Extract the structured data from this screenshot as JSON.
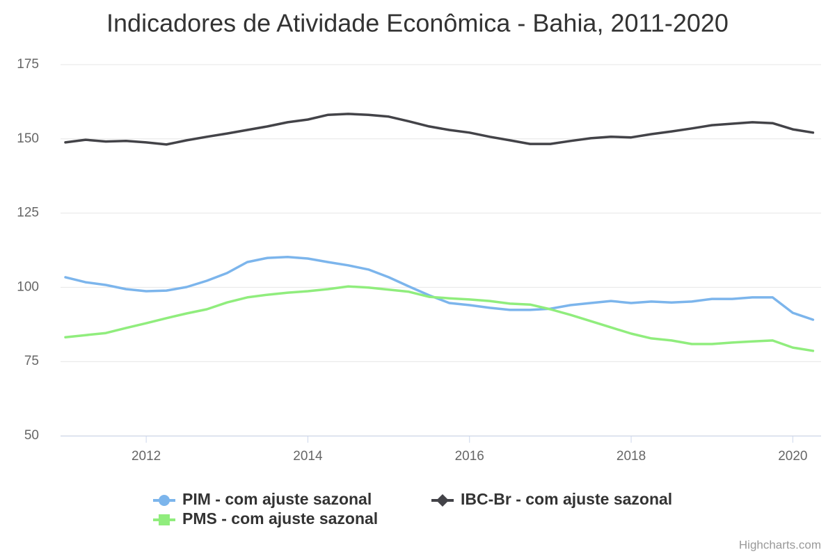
{
  "chart_data": {
    "type": "line",
    "title": "Indicadores de Atividade Econômica - Bahia, 2011-2020",
    "credits": "Highcharts.com",
    "x": [
      2011.0,
      2011.25,
      2011.5,
      2011.75,
      2012.0,
      2012.25,
      2012.5,
      2012.75,
      2013.0,
      2013.25,
      2013.5,
      2013.75,
      2014.0,
      2014.25,
      2014.5,
      2014.75,
      2015.0,
      2015.25,
      2015.5,
      2015.75,
      2016.0,
      2016.25,
      2016.5,
      2016.75,
      2017.0,
      2017.25,
      2017.5,
      2017.75,
      2018.0,
      2018.25,
      2018.5,
      2018.75,
      2019.0,
      2019.25,
      2019.5,
      2019.75,
      2020.0,
      2020.25
    ],
    "series": [
      {
        "name": "PIM - com ajuste sazonal",
        "color": "#7cb5ec",
        "marker": "circle",
        "values": [
          103.4,
          101.7,
          100.8,
          99.4,
          98.7,
          98.9,
          100.1,
          102.2,
          104.8,
          108.5,
          109.9,
          110.2,
          109.7,
          108.5,
          107.4,
          106.0,
          103.4,
          100.3,
          97.3,
          94.7,
          94.0,
          93.1,
          92.4,
          92.4,
          92.8,
          94.0,
          94.7,
          95.4,
          94.7,
          95.2,
          94.9,
          95.2,
          96.1,
          96.1,
          96.6,
          96.6,
          91.4,
          89.1
        ]
      },
      {
        "name": "IBC-Br - com ajuste sazonal",
        "color": "#434348",
        "marker": "diamond",
        "values": [
          148.8,
          149.7,
          149.1,
          149.3,
          148.8,
          148.1,
          149.5,
          150.7,
          151.8,
          153.0,
          154.2,
          155.6,
          156.5,
          158.1,
          158.4,
          158.1,
          157.5,
          155.9,
          154.2,
          153.0,
          152.1,
          150.7,
          149.5,
          148.3,
          148.3,
          149.3,
          150.2,
          150.7,
          150.5,
          151.6,
          152.5,
          153.5,
          154.6,
          155.1,
          155.6,
          155.3,
          153.2,
          152.1
        ]
      },
      {
        "name": "PMS - com ajuste sazonal",
        "color": "#90ed7d",
        "marker": "square",
        "values": [
          83.2,
          83.9,
          84.6,
          86.3,
          87.9,
          89.6,
          91.2,
          92.6,
          94.9,
          96.6,
          97.5,
          98.2,
          98.7,
          99.4,
          100.3,
          99.9,
          99.2,
          98.5,
          96.8,
          96.3,
          95.9,
          95.4,
          94.5,
          94.2,
          92.6,
          90.7,
          88.6,
          86.5,
          84.4,
          82.8,
          82.1,
          80.9,
          80.9,
          81.4,
          81.8,
          82.1,
          79.7,
          78.6
        ]
      }
    ],
    "xlim": [
      2010.94,
      2020.35
    ],
    "xticks": [
      2012,
      2014,
      2016,
      2018,
      2020
    ],
    "ylim": [
      50,
      175
    ],
    "yticks": [
      50,
      75,
      100,
      125,
      150,
      175
    ],
    "grid": true
  }
}
